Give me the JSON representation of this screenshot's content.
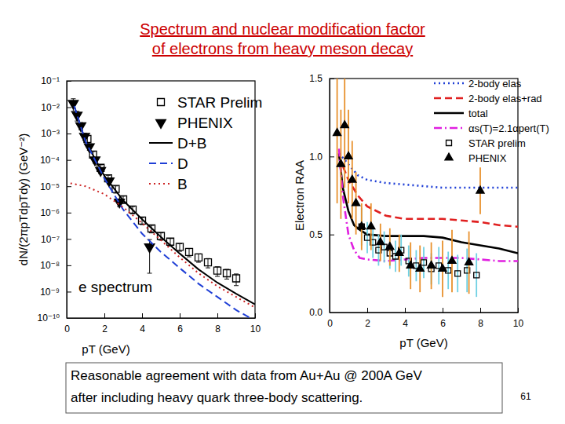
{
  "slide": {
    "title": [
      "Spectrum and nuclear modification factor",
      "of electrons from heavy meson decay"
    ],
    "caption": [
      "Reasonable agreement with data from Au+Au @ 200A GeV",
      "after including heavy quark three-body scattering."
    ],
    "page_number": 61
  },
  "chart_data": [
    {
      "type": "line",
      "log": "y",
      "grid": false,
      "legend": "top-right",
      "xlabel": "pT (GeV)",
      "ylabel": "dN/(2πpTdpTdy) (GeV⁻²)",
      "xlim": [
        0,
        10
      ],
      "xticks": [
        0,
        2,
        4,
        6,
        8,
        10
      ],
      "ylim": [
        1e-10,
        0.1
      ],
      "yticks": [
        {
          "value": 1e-10,
          "label": "10⁻¹⁰"
        },
        {
          "value": 1e-09,
          "label": "10⁻⁹"
        },
        {
          "value": 1e-08,
          "label": "10⁻⁸"
        },
        {
          "value": 1e-07,
          "label": "10⁻⁷"
        },
        {
          "value": 1e-06,
          "label": "10⁻⁶"
        },
        {
          "value": 1e-05,
          "label": "10⁻⁵"
        },
        {
          "value": 0.0001,
          "label": "10⁻⁴"
        },
        {
          "value": 0.001,
          "label": "10⁻³"
        },
        {
          "value": 0.01,
          "label": "10⁻²"
        },
        {
          "value": 0.1,
          "label": "10⁻¹"
        }
      ],
      "annotations": [
        "e spectrum"
      ],
      "series": [
        {
          "name": "STAR Prelim",
          "type": "scatter",
          "marker": "square-open",
          "color": "#000000",
          "x": [
            1.1,
            1.4,
            1.8,
            2.2,
            2.6,
            3.0,
            3.5,
            4.0,
            4.5,
            5.0,
            5.5,
            6.0,
            6.5,
            7.0,
            7.5,
            8.0,
            8.5,
            9.0
          ],
          "values": [
            0.00063,
            0.00016,
            5e-05,
            2e-05,
            7.9e-06,
            3.2e-06,
            1.3e-06,
            5e-07,
            2.5e-07,
            1.3e-07,
            7.9e-08,
            5e-08,
            3.2e-08,
            2e-08,
            1.3e-08,
            6.3e-09,
            5e-09,
            3.2e-09
          ],
          "errors": [
            0.00019,
            4.8e-05,
            1.5e-05,
            6e-06,
            2.4e-06,
            1e-06,
            4e-07,
            1.5e-07,
            8e-08,
            4e-08,
            2.5e-08,
            1.6e-08,
            1.1e-08,
            7e-09,
            5e-09,
            2.5e-09,
            2e-09,
            1.5e-09
          ]
        },
        {
          "name": "PHENIX",
          "type": "scatter",
          "marker": "triangle-down",
          "color": "#000000",
          "x": [
            0.35,
            0.55,
            0.75,
            0.95,
            1.2,
            1.5,
            1.8,
            2.25,
            2.8,
            4.4
          ],
          "values": [
            0.014,
            0.005,
            0.002,
            0.00079,
            0.00032,
            0.0001,
            4e-05,
            1.6e-05,
            2.5e-06,
            5e-08
          ],
          "errors": [
            0.007,
            0.002,
            0.0006,
            0.00024,
            9e-05,
            2.5e-05,
            1e-05,
            4e-06,
            8e-07,
            4.5e-08
          ]
        },
        {
          "name": "D+B",
          "type": "line",
          "line_style": "solid",
          "color": "#000000",
          "x": [
            0.4,
            1,
            2,
            3,
            4,
            5,
            6,
            7,
            8,
            9,
            10
          ],
          "values": [
            0.011,
            0.0005,
            2.5e-05,
            2.9e-06,
            5.6e-07,
            1.2e-07,
            2.8e-08,
            7e-09,
            2.2e-09,
            8.3e-10,
            3.3e-10
          ]
        },
        {
          "name": "D",
          "type": "line",
          "line_style": "dashed",
          "color": "#1f3fd6",
          "x": [
            0.4,
            1,
            2,
            3,
            4,
            5,
            6,
            7,
            8,
            9,
            10
          ],
          "values": [
            0.011,
            0.0005,
            2e-05,
            1.3e-06,
            1.6e-07,
            3.2e-08,
            7.9e-09,
            2e-09,
            6.3e-10,
            2e-10,
            7.9e-11
          ]
        },
        {
          "name": "B",
          "type": "line",
          "line_style": "dotted",
          "color": "#cc2222",
          "x": [
            0.2,
            1,
            2,
            3,
            4,
            5,
            6,
            7,
            8,
            9,
            10
          ],
          "values": [
            1.3e-05,
            1e-05,
            5e-06,
            1.6e-06,
            4e-07,
            9e-08,
            2e-08,
            5e-09,
            1.6e-09,
            6.3e-10,
            2.5e-10
          ]
        }
      ]
    },
    {
      "type": "line",
      "grid": false,
      "legend": "top-right",
      "xlabel": "pT (GeV)",
      "ylabel": "Electron RAA",
      "xlim": [
        0,
        10
      ],
      "xticks": [
        0,
        2,
        4,
        6,
        8,
        10
      ],
      "ylim": [
        0,
        1.5
      ],
      "yticks": [
        {
          "value": 0,
          "label": "0.0"
        },
        0.5,
        {
          "value": 1,
          "label": "1.0"
        },
        1.5
      ],
      "series": [
        {
          "name": "2-body elas",
          "type": "line",
          "line_style": "dotted",
          "color": "#1f3fd6",
          "x": [
            0.5,
            1,
            1.5,
            2,
            3,
            4,
            5,
            6,
            8,
            10
          ],
          "values": [
            1.02,
            0.95,
            0.88,
            0.85,
            0.83,
            0.82,
            0.81,
            0.8,
            0.8,
            0.8
          ]
        },
        {
          "name": "2-body elas+rad",
          "type": "line",
          "line_style": "dashed",
          "color": "#e02020",
          "x": [
            0.5,
            1,
            1.5,
            2,
            3,
            4,
            5,
            6,
            7,
            8,
            9,
            10
          ],
          "values": [
            1.0,
            0.85,
            0.75,
            0.68,
            0.62,
            0.6,
            0.6,
            0.6,
            0.59,
            0.58,
            0.56,
            0.55
          ]
        },
        {
          "name": "total",
          "type": "line",
          "line_style": "solid",
          "color": "#000000",
          "x": [
            0.5,
            0.7,
            1,
            1.3,
            1.6,
            2,
            3,
            4,
            5,
            6,
            7,
            8,
            9,
            10
          ],
          "values": [
            1.02,
            0.8,
            0.65,
            0.56,
            0.53,
            0.5,
            0.49,
            0.49,
            0.49,
            0.48,
            0.45,
            0.43,
            0.41,
            0.38
          ]
        },
        {
          "name": "αs(T)=2.1αpert(T)",
          "type": "line",
          "line_style": "dashdot",
          "color": "#e020e0",
          "x": [
            0.5,
            0.7,
            1,
            1.3,
            1.6,
            2,
            3,
            4,
            5,
            6,
            7,
            8,
            9,
            10
          ],
          "values": [
            1.05,
            0.75,
            0.5,
            0.4,
            0.35,
            0.34,
            0.33,
            0.34,
            0.35,
            0.35,
            0.35,
            0.34,
            0.33,
            0.33
          ]
        },
        {
          "name": "STAR prelim",
          "type": "scatter",
          "marker": "square-open",
          "color": "#000000",
          "x": [
            1.7,
            2.0,
            2.3,
            2.6,
            2.9,
            3.2,
            3.5,
            3.8,
            4.2,
            4.6,
            5.0,
            5.4,
            5.8,
            6.3,
            6.8,
            7.3,
            7.8
          ],
          "values": [
            0.55,
            0.48,
            0.45,
            0.4,
            0.42,
            0.38,
            0.36,
            0.4,
            0.33,
            0.3,
            0.32,
            0.28,
            0.3,
            0.27,
            0.25,
            0.27,
            0.24
          ],
          "errors": [
            0.12,
            0.1,
            0.1,
            0.1,
            0.1,
            0.1,
            0.1,
            0.1,
            0.1,
            0.1,
            0.1,
            0.1,
            0.12,
            0.12,
            0.12,
            0.14,
            0.14
          ]
        },
        {
          "name": "PHENIX",
          "type": "scatter",
          "marker": "triangle-up",
          "color": "#000000",
          "x": [
            0.4,
            0.6,
            0.8,
            1.0,
            1.2,
            1.4,
            1.7,
            2.2,
            2.7,
            3.2,
            3.7,
            4.3,
            4.8,
            5.4,
            6.0,
            6.5,
            7.4,
            8.0
          ],
          "values": [
            1.15,
            0.95,
            1.2,
            1.0,
            0.85,
            0.7,
            0.55,
            0.55,
            0.45,
            0.42,
            0.38,
            0.3,
            0.28,
            0.3,
            0.28,
            0.33,
            0.32,
            0.78
          ],
          "errors": [
            0.45,
            0.35,
            0.4,
            0.3,
            0.25,
            0.2,
            0.15,
            0.15,
            0.12,
            0.12,
            0.12,
            0.15,
            0.15,
            0.15,
            0.18,
            0.2,
            0.2,
            0.15
          ]
        }
      ]
    }
  ]
}
